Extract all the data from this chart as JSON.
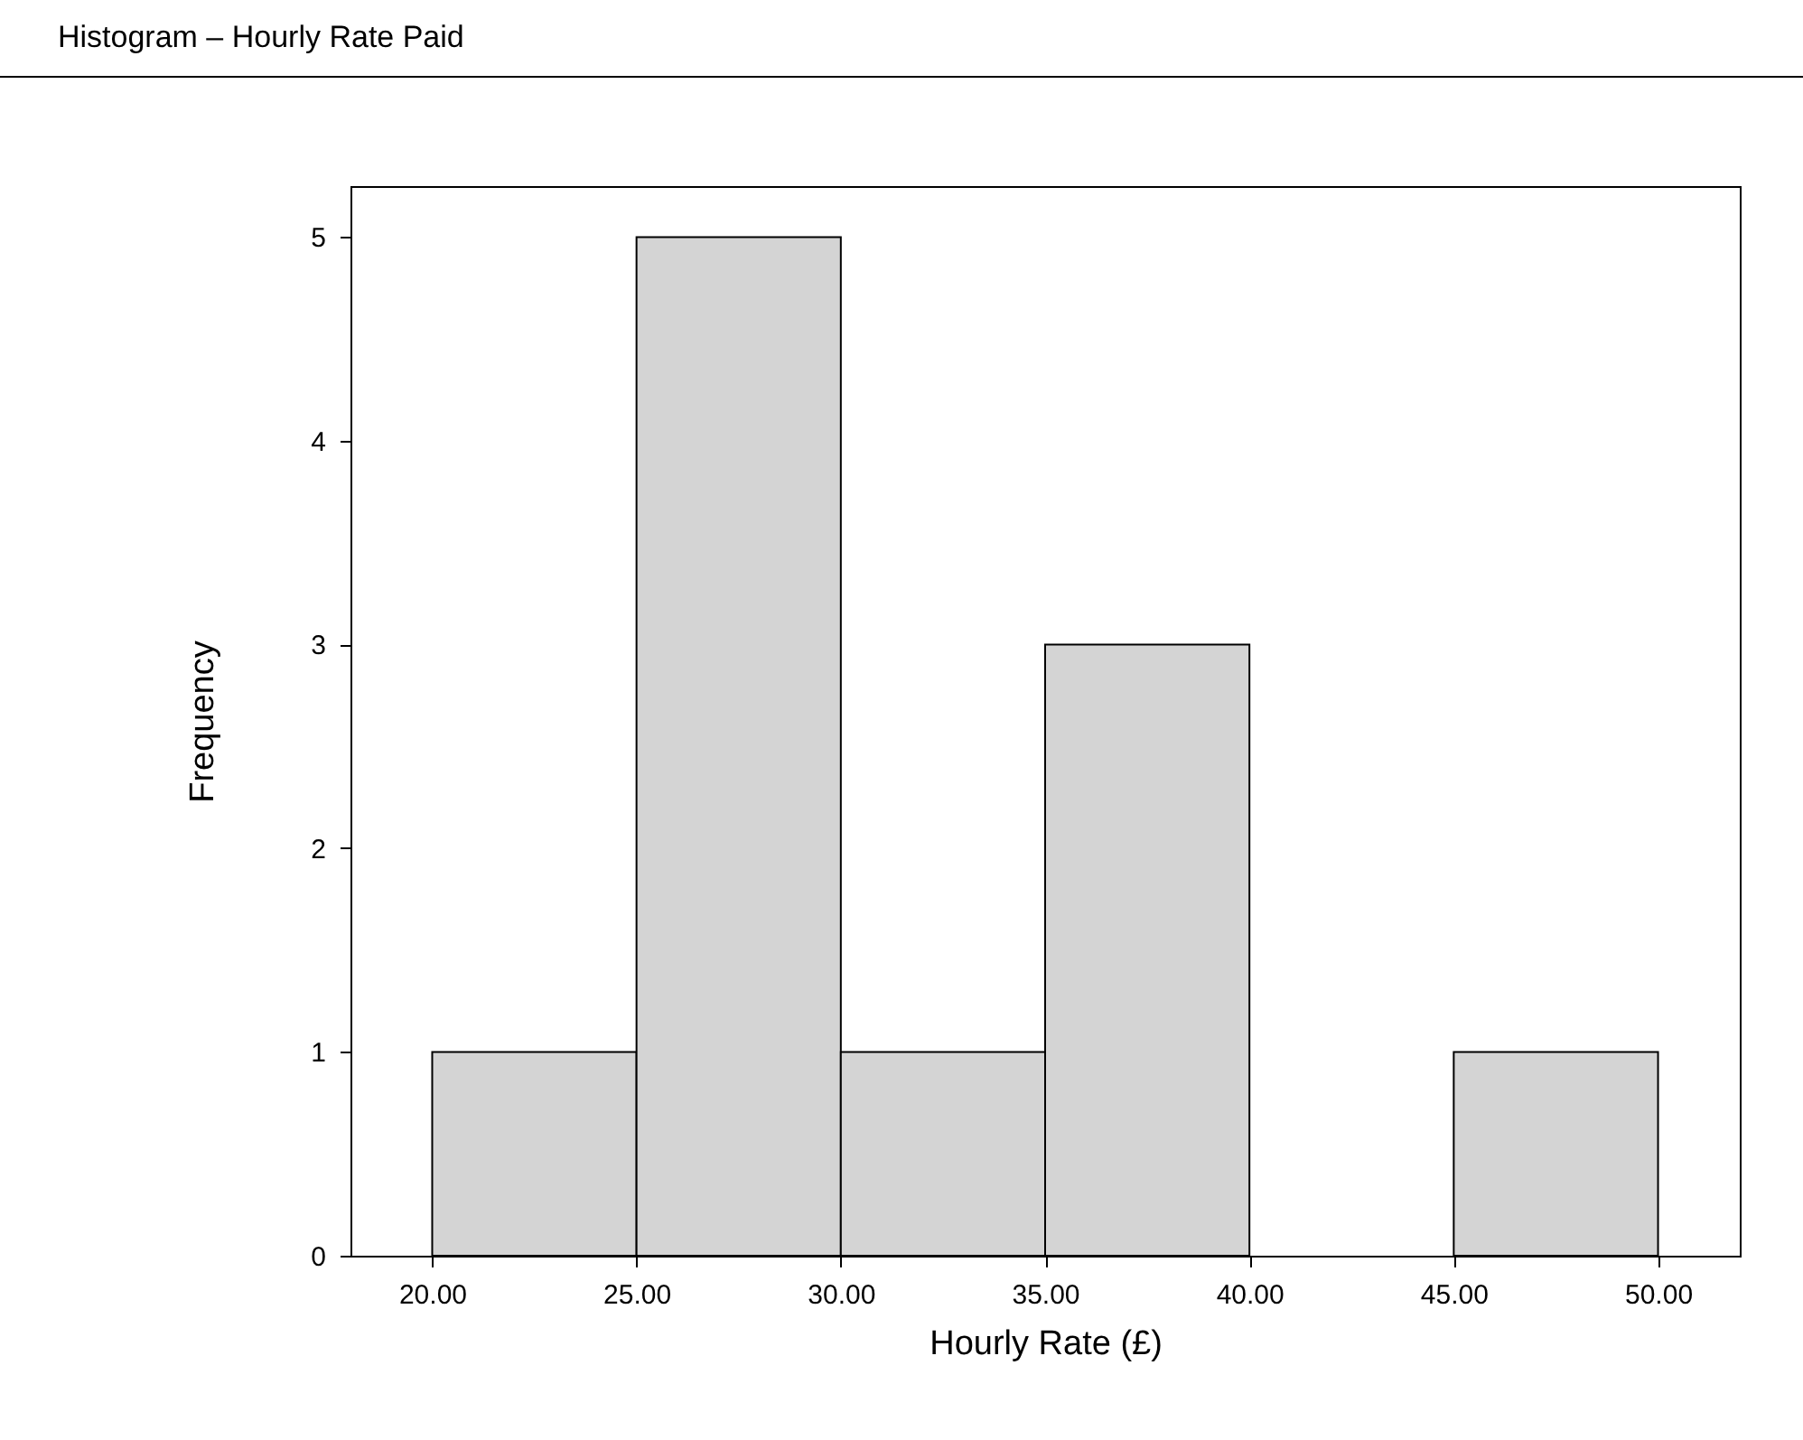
{
  "chart_data": {
    "type": "histogram",
    "title": "Histogram – Hourly Rate Paid",
    "xlabel": "Hourly Rate (£)",
    "ylabel": "Frequency",
    "bins": [
      20,
      25,
      30,
      35,
      40,
      45,
      50
    ],
    "values": [
      1,
      5,
      1,
      3,
      0,
      1
    ],
    "color": "#d4d4d4",
    "xlim": [
      18,
      52
    ],
    "xticks": [
      {
        "value": 20,
        "label": "20.00"
      },
      {
        "value": 25,
        "label": "25.00"
      },
      {
        "value": 30,
        "label": "30.00"
      },
      {
        "value": 35,
        "label": "35.00"
      },
      {
        "value": 40,
        "label": "40.00"
      },
      {
        "value": 45,
        "label": "45.00"
      },
      {
        "value": 50,
        "label": "50.00"
      }
    ],
    "ylim": [
      0,
      5.25
    ],
    "yticks": [
      0,
      1,
      2,
      3,
      4,
      5
    ]
  }
}
